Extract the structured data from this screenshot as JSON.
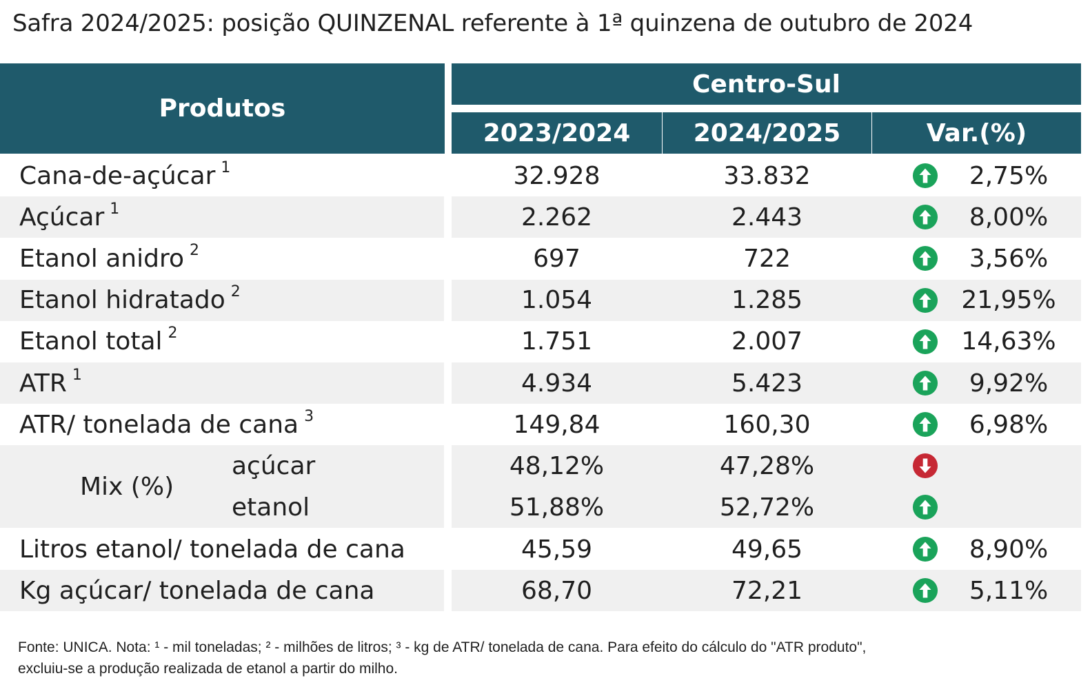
{
  "title": "Safra 2024/2025: posição QUINZENAL referente à 1ª quinzena de outubro de 2024",
  "header": {
    "products": "Produtos",
    "region": "Centro-Sul",
    "col_prev": "2023/2024",
    "col_curr": "2024/2025",
    "col_var": "Var.(%)"
  },
  "colors": {
    "header_bg": "#1f5a6b",
    "up": "#1aa35a",
    "down": "#c62834",
    "shade": "#f0f0f0"
  },
  "rows": [
    {
      "label": "Cana-de-açúcar",
      "sup": "1",
      "prev": "32.928",
      "curr": "33.832",
      "trend": "up",
      "var": "2,75%"
    },
    {
      "label": "Açúcar",
      "sup": "1",
      "prev": "2.262",
      "curr": "2.443",
      "trend": "up",
      "var": "8,00%"
    },
    {
      "label": "Etanol anidro",
      "sup": "2",
      "prev": "697",
      "curr": "722",
      "trend": "up",
      "var": "3,56%"
    },
    {
      "label": "Etanol hidratado",
      "sup": "2",
      "prev": "1.054",
      "curr": "1.285",
      "trend": "up",
      "var": "21,95%"
    },
    {
      "label": "Etanol total",
      "sup": "2",
      "prev": "1.751",
      "curr": "2.007",
      "trend": "up",
      "var": "14,63%"
    },
    {
      "label": "ATR",
      "sup": "1",
      "prev": "4.934",
      "curr": "5.423",
      "trend": "up",
      "var": "9,92%"
    },
    {
      "label": "ATR/ tonelada de cana",
      "sup": "3",
      "prev": "149,84",
      "curr": "160,30",
      "trend": "up",
      "var": "6,98%"
    }
  ],
  "mix": {
    "label": "Mix (%)",
    "sugar": {
      "label": "açúcar",
      "prev": "48,12%",
      "curr": "47,28%",
      "trend": "down"
    },
    "ethanol": {
      "label": "etanol",
      "prev": "51,88%",
      "curr": "52,72%",
      "trend": "up"
    }
  },
  "rows_after": [
    {
      "label": "Litros etanol/ tonelada de cana",
      "prev": "45,59",
      "curr": "49,65",
      "trend": "up",
      "var": "8,90%"
    },
    {
      "label": "Kg açúcar/ tonelada de cana",
      "prev": "68,70",
      "curr": "72,21",
      "trend": "up",
      "var": "5,11%"
    }
  ],
  "footnote_line1": "Fonte: UNICA. Nota: ¹ - mil toneladas; ² - milhões de litros; ³ - kg de ATR/ tonelada de cana. Para efeito do cálculo do \"ATR produto\",",
  "footnote_line2": "excluiu-se a produção realizada de etanol a partir do milho."
}
